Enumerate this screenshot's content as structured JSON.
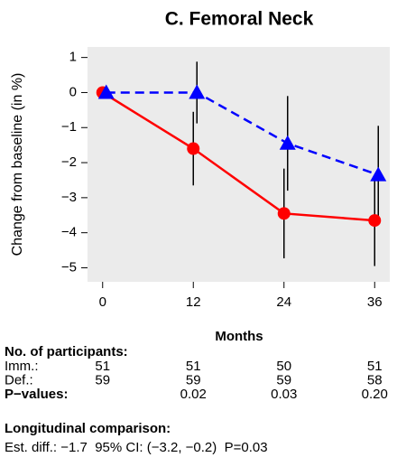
{
  "chart_data": {
    "type": "line",
    "title": "C. Femoral Neck",
    "ylabel": "Change from baseline (in %)",
    "xlabel": "Months",
    "x": [
      0,
      12,
      24,
      36
    ],
    "xlim": [
      -2,
      38
    ],
    "xticks": [
      0,
      12,
      24,
      36
    ],
    "ylim": [
      -5.4,
      1.3
    ],
    "yticks": [
      1,
      0,
      {
        "value": -1,
        "label": "−1"
      },
      {
        "value": -2,
        "label": "−2"
      },
      {
        "value": -3,
        "label": "−3"
      },
      {
        "value": -4,
        "label": "−4"
      },
      {
        "value": -5,
        "label": "−5"
      }
    ],
    "background": "#ebebeb",
    "series": [
      {
        "color": "#ff0000",
        "dash": "solid",
        "marker": "circle",
        "values": [
          0,
          -1.6,
          -3.45,
          -3.65
        ],
        "errors": [
          0,
          1.05,
          1.28,
          1.3
        ]
      },
      {
        "color": "#0000ff",
        "dash": "dashed",
        "marker": "triangle",
        "values": [
          0,
          0,
          -1.45,
          -2.35
        ],
        "errors": [
          0,
          0.88,
          1.35,
          1.4
        ]
      }
    ]
  },
  "participants": {
    "heading": "No. of participants:",
    "rows": [
      {
        "label": "Imm.:",
        "values": [
          51,
          51,
          50,
          51
        ]
      },
      {
        "label": "Def.:",
        "values": [
          59,
          59,
          59,
          58
        ]
      }
    ]
  },
  "pvalues": {
    "label": "P−values:",
    "values": [
      null,
      "0.02",
      "0.03",
      "0.20"
    ]
  },
  "longitudinal": {
    "heading": "Longitudinal comparison:",
    "text": "Est. diff.: −1.7  95% CI: (−3.2, −0.2)  P=0.03"
  }
}
